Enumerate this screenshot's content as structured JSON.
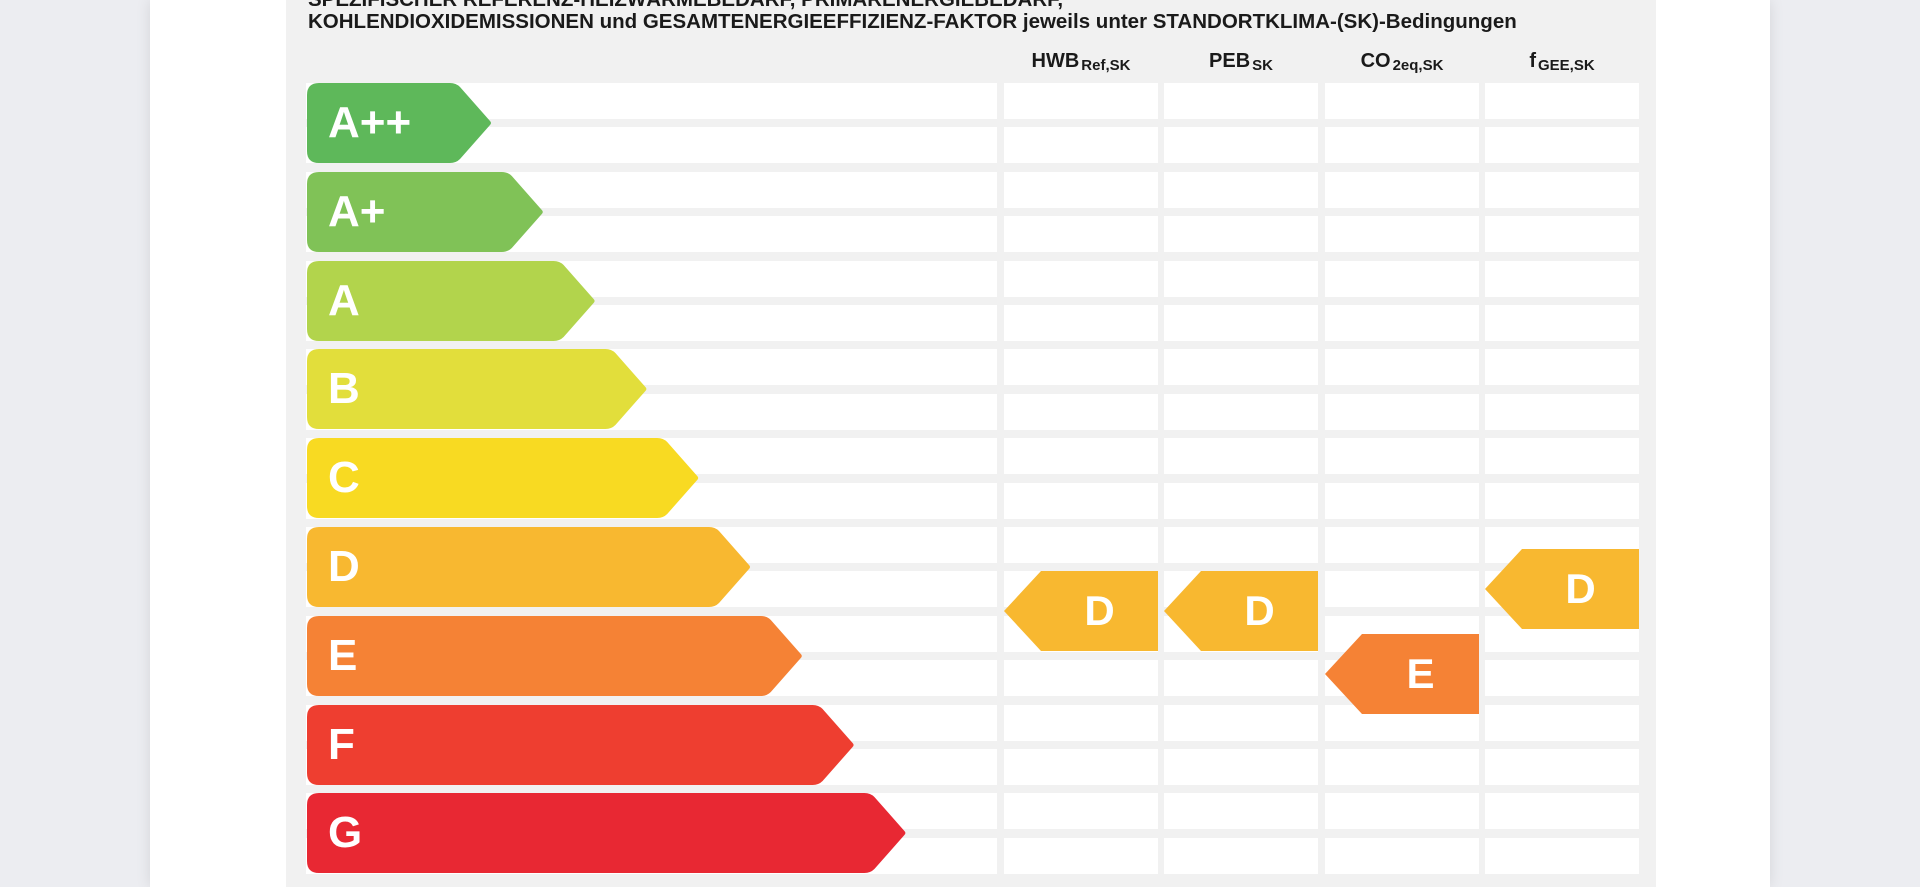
{
  "heading": {
    "line1": "SPEZIFISCHER REFERENZ-HEIZWÄRMEBEDARF, PRIMÄRENERGIEBEDARF,",
    "line2": "KOHLENDIOXIDEMISSIONEN und GESAMTENERGIEEFFIZIENZ-FAKTOR jeweils unter STANDORTKLIMA-(SK)-Bedingungen"
  },
  "columns": [
    {
      "id": "hwb",
      "main": "HWB",
      "sub": "Ref,SK"
    },
    {
      "id": "peb",
      "main": "PEB",
      "sub": "SK"
    },
    {
      "id": "co2",
      "main": "CO",
      "sub": "2eq,SK"
    },
    {
      "id": "fgee",
      "main": "f",
      "sub": "GEE,SK"
    }
  ],
  "energy_classes": [
    {
      "label": "A++",
      "color": "#5eb85a"
    },
    {
      "label": "A+",
      "color": "#80c257"
    },
    {
      "label": "A",
      "color": "#b2d44c"
    },
    {
      "label": "B",
      "color": "#e2de3b"
    },
    {
      "label": "C",
      "color": "#f8da22"
    },
    {
      "label": "D",
      "color": "#f8b830"
    },
    {
      "label": "E",
      "color": "#f58235"
    },
    {
      "label": "F",
      "color": "#ee3e30"
    },
    {
      "label": "G",
      "color": "#e82833"
    }
  ],
  "ratings": [
    {
      "column": "hwb",
      "label": "D",
      "color": "#f8b830",
      "class_position": 5.5
    },
    {
      "column": "peb",
      "label": "D",
      "color": "#f8b830",
      "class_position": 5.5
    },
    {
      "column": "co2",
      "label": "E",
      "color": "#f58235",
      "class_position": 6.2
    },
    {
      "column": "fgee",
      "label": "D",
      "color": "#f8b830",
      "class_position": 5.25
    }
  ]
}
